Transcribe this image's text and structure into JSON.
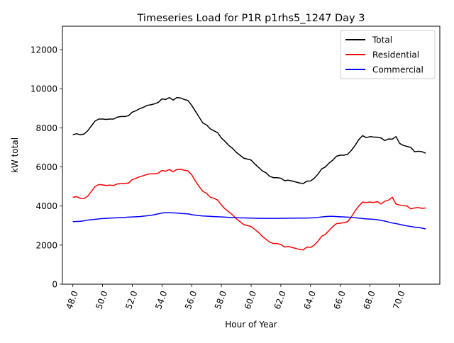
{
  "chart_data": {
    "type": "line",
    "title": "Timeseries Load for P1R p1rhs5_1247  Day 3",
    "xlabel": "Hour of Year",
    "ylabel": "kW total",
    "xlim": [
      47.3,
      72.7
    ],
    "ylim": [
      0,
      13200
    ],
    "grid": false,
    "legend_position": "top-right",
    "x_ticks": [
      48,
      50,
      52,
      54,
      56,
      58,
      60,
      62,
      64,
      66,
      68,
      70
    ],
    "x_tick_labels": [
      "48.0",
      "50.0",
      "52.0",
      "54.0",
      "56.0",
      "58.0",
      "60.0",
      "62.0",
      "64.0",
      "66.0",
      "68.0",
      "70.0"
    ],
    "y_ticks": [
      0,
      2000,
      4000,
      6000,
      8000,
      10000,
      12000
    ],
    "y_tick_labels": [
      "0",
      "2000",
      "4000",
      "6000",
      "8000",
      "10000",
      "12000"
    ],
    "x": [
      48.0,
      48.25,
      48.5,
      48.75,
      49.0,
      49.25,
      49.5,
      49.75,
      50.0,
      50.25,
      50.5,
      50.75,
      51.0,
      51.25,
      51.5,
      51.75,
      52.0,
      52.25,
      52.5,
      52.75,
      53.0,
      53.25,
      53.5,
      53.75,
      54.0,
      54.25,
      54.5,
      54.75,
      55.0,
      55.25,
      55.5,
      55.75,
      56.0,
      56.25,
      56.5,
      56.75,
      57.0,
      57.25,
      57.5,
      57.75,
      58.0,
      58.25,
      58.5,
      58.75,
      59.0,
      59.25,
      59.5,
      59.75,
      60.0,
      60.25,
      60.5,
      60.75,
      61.0,
      61.25,
      61.5,
      61.75,
      62.0,
      62.25,
      62.5,
      62.75,
      63.0,
      63.25,
      63.5,
      63.75,
      64.0,
      64.25,
      64.5,
      64.75,
      65.0,
      65.25,
      65.5,
      65.75,
      66.0,
      66.25,
      66.5,
      66.75,
      67.0,
      67.25,
      67.5,
      67.75,
      68.0,
      68.25,
      68.5,
      68.75,
      69.0,
      69.25,
      69.5,
      69.75,
      70.0,
      70.25,
      70.5,
      70.75,
      71.0,
      71.25,
      71.5,
      71.75
    ],
    "series": [
      {
        "name": "Total",
        "color": "#000000",
        "values": [
          7650,
          7700,
          7650,
          7680,
          7850,
          8100,
          8350,
          8450,
          8450,
          8430,
          8450,
          8450,
          8550,
          8580,
          8580,
          8620,
          8800,
          8880,
          8980,
          9050,
          9150,
          9180,
          9230,
          9300,
          9480,
          9450,
          9550,
          9420,
          9550,
          9530,
          9450,
          9400,
          9150,
          8850,
          8550,
          8250,
          8150,
          7950,
          7850,
          7750,
          7480,
          7300,
          7100,
          6950,
          6750,
          6600,
          6450,
          6400,
          6350,
          6150,
          5980,
          5800,
          5700,
          5520,
          5450,
          5450,
          5420,
          5300,
          5320,
          5280,
          5230,
          5180,
          5150,
          5270,
          5280,
          5420,
          5630,
          5900,
          6000,
          6200,
          6350,
          6550,
          6600,
          6600,
          6650,
          6850,
          7100,
          7400,
          7600,
          7500,
          7550,
          7530,
          7520,
          7480,
          7350,
          7430,
          7420,
          7550,
          7200,
          7100,
          7050,
          7000,
          6780,
          6800,
          6780,
          6700
        ]
      },
      {
        "name": "Residential",
        "color": "#ff0000",
        "values": [
          4450,
          4480,
          4400,
          4380,
          4500,
          4750,
          5000,
          5100,
          5080,
          5050,
          5070,
          5050,
          5130,
          5150,
          5150,
          5180,
          5350,
          5420,
          5500,
          5550,
          5620,
          5650,
          5650,
          5680,
          5820,
          5780,
          5870,
          5750,
          5870,
          5880,
          5830,
          5800,
          5600,
          5280,
          5000,
          4750,
          4650,
          4450,
          4400,
          4300,
          4050,
          3850,
          3700,
          3550,
          3350,
          3200,
          3050,
          3000,
          2950,
          2800,
          2650,
          2450,
          2300,
          2150,
          2080,
          2080,
          2030,
          1900,
          1930,
          1880,
          1830,
          1780,
          1750,
          1900,
          1880,
          2000,
          2200,
          2450,
          2550,
          2750,
          2950,
          3100,
          3120,
          3150,
          3200,
          3450,
          3750,
          4000,
          4200,
          4180,
          4200,
          4180,
          4230,
          4100,
          4250,
          4300,
          4450,
          4100,
          4050,
          4020,
          4000,
          3850,
          3900,
          3920,
          3880,
          3900
        ]
      },
      {
        "name": "Commercial",
        "color": "#0000ff",
        "values": [
          3200,
          3210,
          3220,
          3240,
          3280,
          3300,
          3320,
          3340,
          3360,
          3370,
          3380,
          3390,
          3400,
          3410,
          3420,
          3430,
          3440,
          3450,
          3460,
          3480,
          3500,
          3520,
          3560,
          3600,
          3640,
          3660,
          3660,
          3650,
          3640,
          3620,
          3610,
          3600,
          3560,
          3530,
          3510,
          3490,
          3480,
          3470,
          3460,
          3450,
          3440,
          3430,
          3420,
          3410,
          3400,
          3395,
          3390,
          3385,
          3380,
          3375,
          3370,
          3368,
          3366,
          3366,
          3367,
          3370,
          3372,
          3374,
          3376,
          3378,
          3380,
          3380,
          3380,
          3385,
          3390,
          3400,
          3420,
          3440,
          3460,
          3470,
          3470,
          3460,
          3450,
          3440,
          3430,
          3420,
          3400,
          3380,
          3360,
          3340,
          3330,
          3320,
          3300,
          3260,
          3230,
          3180,
          3130,
          3100,
          3060,
          3020,
          2980,
          2950,
          2920,
          2900,
          2870,
          2830
        ]
      }
    ]
  }
}
